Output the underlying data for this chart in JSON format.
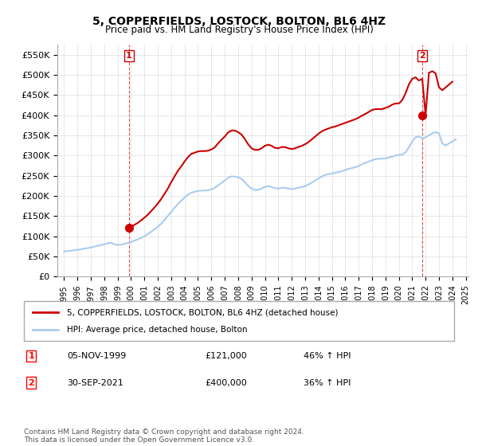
{
  "title": "5, COPPERFIELDS, LOSTOCK, BOLTON, BL6 4HZ",
  "subtitle": "Price paid vs. HM Land Registry's House Price Index (HPI)",
  "xlabel": "",
  "ylabel": "",
  "ylim": [
    0,
    575000
  ],
  "yticks": [
    0,
    50000,
    100000,
    150000,
    200000,
    250000,
    300000,
    350000,
    400000,
    450000,
    500000,
    550000
  ],
  "ytick_labels": [
    "£0",
    "£50K",
    "£100K",
    "£150K",
    "£200K",
    "£250K",
    "£300K",
    "£350K",
    "£400K",
    "£450K",
    "£500K",
    "£550K"
  ],
  "background_color": "#ffffff",
  "plot_bg_color": "#ffffff",
  "grid_color": "#dddddd",
  "red_color": "#cc0000",
  "blue_color": "#aaccee",
  "sale1_year": 1999.84,
  "sale1_price": 121000,
  "sale1_label": "1",
  "sale2_year": 2021.75,
  "sale2_price": 400000,
  "sale2_label": "2",
  "legend_line1": "5, COPPERFIELDS, LOSTOCK, BOLTON, BL6 4HZ (detached house)",
  "legend_line2": "HPI: Average price, detached house, Bolton",
  "table_row1": [
    "1",
    "05-NOV-1999",
    "£121,000",
    "46% ↑ HPI"
  ],
  "table_row2": [
    "2",
    "30-SEP-2021",
    "£400,000",
    "36% ↑ HPI"
  ],
  "footnote": "Contains HM Land Registry data © Crown copyright and database right 2024.\nThis data is licensed under the Open Government Licence v3.0.",
  "hpi_years": [
    1995.0,
    1995.25,
    1995.5,
    1995.75,
    1996.0,
    1996.25,
    1996.5,
    1996.75,
    1997.0,
    1997.25,
    1997.5,
    1997.75,
    1998.0,
    1998.25,
    1998.5,
    1998.75,
    1999.0,
    1999.25,
    1999.5,
    1999.75,
    2000.0,
    2000.25,
    2000.5,
    2000.75,
    2001.0,
    2001.25,
    2001.5,
    2001.75,
    2002.0,
    2002.25,
    2002.5,
    2002.75,
    2003.0,
    2003.25,
    2003.5,
    2003.75,
    2004.0,
    2004.25,
    2004.5,
    2004.75,
    2005.0,
    2005.25,
    2005.5,
    2005.75,
    2006.0,
    2006.25,
    2006.5,
    2006.75,
    2007.0,
    2007.25,
    2007.5,
    2007.75,
    2008.0,
    2008.25,
    2008.5,
    2008.75,
    2009.0,
    2009.25,
    2009.5,
    2009.75,
    2010.0,
    2010.25,
    2010.5,
    2010.75,
    2011.0,
    2011.25,
    2011.5,
    2011.75,
    2012.0,
    2012.25,
    2012.5,
    2012.75,
    2013.0,
    2013.25,
    2013.5,
    2013.75,
    2014.0,
    2014.25,
    2014.5,
    2014.75,
    2015.0,
    2015.25,
    2015.5,
    2015.75,
    2016.0,
    2016.25,
    2016.5,
    2016.75,
    2017.0,
    2017.25,
    2017.5,
    2017.75,
    2018.0,
    2018.25,
    2018.5,
    2018.75,
    2019.0,
    2019.25,
    2019.5,
    2019.75,
    2020.0,
    2020.25,
    2020.5,
    2020.75,
    2021.0,
    2021.25,
    2021.5,
    2021.75,
    2022.0,
    2022.25,
    2022.5,
    2022.75,
    2023.0,
    2023.25,
    2023.5,
    2023.75,
    2024.0,
    2024.25
  ],
  "hpi_values": [
    62000,
    63000,
    64000,
    65000,
    66000,
    67500,
    69000,
    70500,
    72000,
    74000,
    76000,
    78000,
    80000,
    82000,
    84000,
    80000,
    78000,
    79000,
    81000,
    83000,
    86000,
    89000,
    92000,
    96000,
    100000,
    105000,
    111000,
    117000,
    123000,
    131000,
    140000,
    150000,
    160000,
    170000,
    180000,
    188000,
    196000,
    203000,
    208000,
    210000,
    212000,
    213000,
    213000,
    214000,
    216000,
    220000,
    226000,
    232000,
    238000,
    245000,
    248000,
    248000,
    246000,
    242000,
    234000,
    225000,
    218000,
    215000,
    215000,
    218000,
    222000,
    224000,
    222000,
    219000,
    218000,
    220000,
    220000,
    218000,
    217000,
    218000,
    220000,
    222000,
    224000,
    228000,
    233000,
    238000,
    243000,
    248000,
    252000,
    254000,
    255000,
    257000,
    259000,
    261000,
    264000,
    267000,
    269000,
    271000,
    274000,
    278000,
    282000,
    285000,
    288000,
    291000,
    292000,
    292000,
    293000,
    295000,
    297000,
    300000,
    302000,
    302000,
    308000,
    320000,
    335000,
    345000,
    348000,
    342000,
    345000,
    350000,
    355000,
    358000,
    355000,
    330000,
    325000,
    330000,
    335000,
    340000
  ],
  "red_years": [
    1995.0,
    1995.25,
    1995.5,
    1995.75,
    1996.0,
    1996.25,
    1996.5,
    1996.75,
    1997.0,
    1997.25,
    1997.5,
    1997.75,
    1998.0,
    1998.25,
    1998.5,
    1998.75,
    1999.0,
    1999.25,
    1999.5,
    1999.75,
    2000.0,
    2000.25,
    2000.5,
    2000.75,
    2001.0,
    2001.25,
    2001.5,
    2001.75,
    2002.0,
    2002.25,
    2002.5,
    2002.75,
    2003.0,
    2003.25,
    2003.5,
    2003.75,
    2004.0,
    2004.25,
    2004.5,
    2004.75,
    2005.0,
    2005.25,
    2005.5,
    2005.75,
    2006.0,
    2006.25,
    2006.5,
    2006.75,
    2007.0,
    2007.25,
    2007.5,
    2007.75,
    2008.0,
    2008.25,
    2008.5,
    2008.75,
    2009.0,
    2009.25,
    2009.5,
    2009.75,
    2010.0,
    2010.25,
    2010.5,
    2010.75,
    2011.0,
    2011.25,
    2011.5,
    2011.75,
    2012.0,
    2012.25,
    2012.5,
    2012.75,
    2013.0,
    2013.25,
    2013.5,
    2013.75,
    2014.0,
    2014.25,
    2014.5,
    2014.75,
    2015.0,
    2015.25,
    2015.5,
    2015.75,
    2016.0,
    2016.25,
    2016.5,
    2016.75,
    2017.0,
    2017.25,
    2017.5,
    2017.75,
    2018.0,
    2018.25,
    2018.5,
    2018.75,
    2019.0,
    2019.25,
    2019.5,
    2019.75,
    2020.0,
    2020.25,
    2020.5,
    2020.75,
    2021.0,
    2021.25,
    2021.5,
    2021.75,
    2022.0,
    2022.25,
    2022.5,
    2022.75,
    2023.0,
    2023.25,
    2023.5,
    2023.75,
    2024.0,
    2024.25
  ],
  "red_values": [
    null,
    null,
    null,
    null,
    null,
    null,
    null,
    null,
    null,
    null,
    null,
    null,
    null,
    null,
    null,
    null,
    null,
    null,
    null,
    121000,
    124000,
    128000,
    133000,
    139000,
    146000,
    153000,
    162000,
    171000,
    181000,
    192000,
    205000,
    218000,
    234000,
    248000,
    262000,
    273000,
    285000,
    296000,
    304000,
    307000,
    310000,
    311000,
    311000,
    312000,
    315000,
    320000,
    330000,
    339000,
    347000,
    357000,
    362000,
    362000,
    358000,
    352000,
    341000,
    328000,
    318000,
    314000,
    314000,
    318000,
    324000,
    327000,
    324000,
    319000,
    318000,
    321000,
    321000,
    318000,
    316000,
    318000,
    321000,
    324000,
    328000,
    333000,
    340000,
    347000,
    354000,
    360000,
    364000,
    367000,
    370000,
    372000,
    375000,
    378000,
    381000,
    384000,
    387000,
    390000,
    394000,
    399000,
    403000,
    408000,
    413000,
    415000,
    415000,
    415000,
    418000,
    421000,
    426000,
    429000,
    429000,
    437000,
    454000,
    476000,
    490000,
    494000,
    486000,
    490000,
    400000,
    505000,
    509000,
    504000,
    469000,
    462000,
    469000,
    476000,
    483000
  ],
  "xlim_start": 1994.5,
  "xlim_end": 2025.2
}
